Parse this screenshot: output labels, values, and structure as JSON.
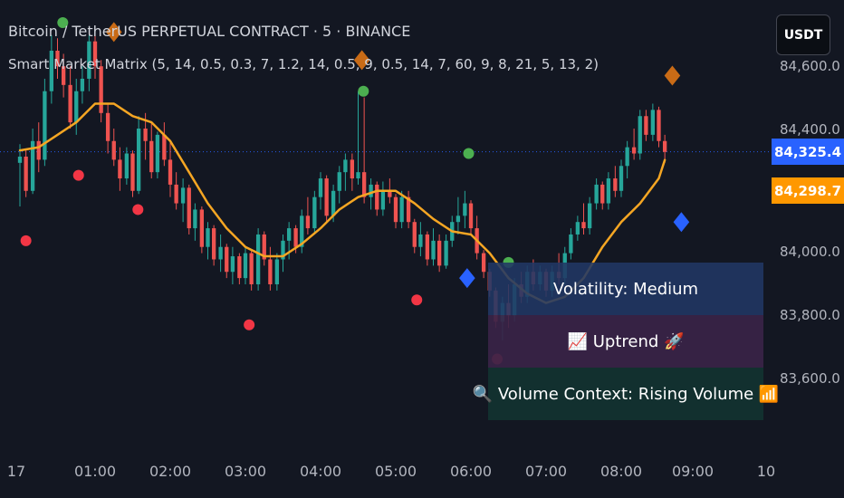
{
  "header": {
    "title": "Bitcoin / TetherUS PERPETUAL CONTRACT · 5 · BINANCE",
    "indicator": "Smart Market Matrix (5, 14, 0.5, 0.3, 7, 1.2, 14, 0.5, 9, 0.5, 14, 7, 60, 9, 8, 21, 5, 13, 2)"
  },
  "toolbar": {
    "currency": "USDT"
  },
  "price_axis": {
    "ticks": [
      {
        "value": 84600,
        "label": "84,600.0"
      },
      {
        "value": 84400,
        "label": "84,400.0"
      },
      {
        "value": 84000,
        "label": "84,000.0"
      },
      {
        "value": 83800,
        "label": "83,800.0"
      },
      {
        "value": 83600,
        "label": "83,600.0"
      }
    ],
    "last_price": {
      "value": 84325.4,
      "label": "84,325.4",
      "color": "#2962ff"
    },
    "ma_price": {
      "value": 84298.7,
      "label": "84,298.7",
      "color": "#ff9800"
    }
  },
  "time_axis": {
    "ticks": [
      {
        "t": 0.0,
        "label": "17"
      },
      {
        "t": 1.0,
        "label": "01:00"
      },
      {
        "t": 2.0,
        "label": "02:00"
      },
      {
        "t": 3.0,
        "label": "03:00"
      },
      {
        "t": 4.0,
        "label": "04:00"
      },
      {
        "t": 5.0,
        "label": "05:00"
      },
      {
        "t": 6.0,
        "label": "06:00"
      },
      {
        "t": 7.0,
        "label": "07:00"
      },
      {
        "t": 8.0,
        "label": "08:00"
      },
      {
        "t": 9.0,
        "label": "09:00"
      },
      {
        "t": 10.0,
        "label": "10"
      }
    ]
  },
  "info_table": {
    "volatility": "Volatility: Medium",
    "trend": "📈 Uptrend 🚀",
    "volume": "🔍 Volume Context: Rising Volume 📶"
  },
  "chart_data": {
    "type": "candlestick",
    "symbol": "Bitcoin / TetherUS PERPETUAL CONTRACT",
    "interval": "5",
    "exchange": "BINANCE",
    "x_unit": "hours",
    "y_range": [
      83450,
      84750
    ],
    "x_range": [
      -0.15,
      10.5
    ],
    "colors": {
      "up": "#26a69a",
      "down": "#ef5350",
      "ma": "#f5a623",
      "background": "#131722"
    },
    "candle_width_hours": 0.052,
    "candles": [
      {
        "t": 0.0,
        "o": 84290,
        "h": 84350,
        "l": 84150,
        "c": 84310
      },
      {
        "t": 0.08,
        "o": 84310,
        "h": 84330,
        "l": 84180,
        "c": 84200
      },
      {
        "t": 0.17,
        "o": 84200,
        "h": 84400,
        "l": 84190,
        "c": 84360
      },
      {
        "t": 0.25,
        "o": 84360,
        "h": 84420,
        "l": 84260,
        "c": 84300
      },
      {
        "t": 0.33,
        "o": 84300,
        "h": 84560,
        "l": 84280,
        "c": 84520
      },
      {
        "t": 0.42,
        "o": 84520,
        "h": 84700,
        "l": 84480,
        "c": 84650
      },
      {
        "t": 0.5,
        "o": 84650,
        "h": 84690,
        "l": 84560,
        "c": 84600
      },
      {
        "t": 0.58,
        "o": 84600,
        "h": 84640,
        "l": 84500,
        "c": 84540
      },
      {
        "t": 0.67,
        "o": 84540,
        "h": 84600,
        "l": 84400,
        "c": 84420
      },
      {
        "t": 0.75,
        "o": 84420,
        "h": 84560,
        "l": 84380,
        "c": 84520
      },
      {
        "t": 0.83,
        "o": 84520,
        "h": 84600,
        "l": 84480,
        "c": 84560
      },
      {
        "t": 0.92,
        "o": 84560,
        "h": 84700,
        "l": 84520,
        "c": 84680
      },
      {
        "t": 1.0,
        "o": 84680,
        "h": 84720,
        "l": 84560,
        "c": 84600
      },
      {
        "t": 1.08,
        "o": 84600,
        "h": 84620,
        "l": 84420,
        "c": 84450
      },
      {
        "t": 1.17,
        "o": 84450,
        "h": 84480,
        "l": 84320,
        "c": 84360
      },
      {
        "t": 1.25,
        "o": 84360,
        "h": 84400,
        "l": 84280,
        "c": 84300
      },
      {
        "t": 1.33,
        "o": 84300,
        "h": 84340,
        "l": 84200,
        "c": 84240
      },
      {
        "t": 1.42,
        "o": 84240,
        "h": 84340,
        "l": 84220,
        "c": 84320
      },
      {
        "t": 1.5,
        "o": 84320,
        "h": 84330,
        "l": 84180,
        "c": 84200
      },
      {
        "t": 1.58,
        "o": 84200,
        "h": 84440,
        "l": 84190,
        "c": 84400
      },
      {
        "t": 1.67,
        "o": 84400,
        "h": 84450,
        "l": 84300,
        "c": 84360
      },
      {
        "t": 1.75,
        "o": 84360,
        "h": 84420,
        "l": 84240,
        "c": 84260
      },
      {
        "t": 1.83,
        "o": 84260,
        "h": 84390,
        "l": 84240,
        "c": 84380
      },
      {
        "t": 1.92,
        "o": 84380,
        "h": 84420,
        "l": 84280,
        "c": 84300
      },
      {
        "t": 2.0,
        "o": 84300,
        "h": 84360,
        "l": 84180,
        "c": 84220
      },
      {
        "t": 2.08,
        "o": 84220,
        "h": 84260,
        "l": 84140,
        "c": 84160
      },
      {
        "t": 2.17,
        "o": 84160,
        "h": 84240,
        "l": 84100,
        "c": 84210
      },
      {
        "t": 2.25,
        "o": 84210,
        "h": 84220,
        "l": 84060,
        "c": 84080
      },
      {
        "t": 2.33,
        "o": 84080,
        "h": 84160,
        "l": 84040,
        "c": 84140
      },
      {
        "t": 2.42,
        "o": 84140,
        "h": 84150,
        "l": 84000,
        "c": 84020
      },
      {
        "t": 2.5,
        "o": 84020,
        "h": 84100,
        "l": 83980,
        "c": 84080
      },
      {
        "t": 2.58,
        "o": 84080,
        "h": 84090,
        "l": 83960,
        "c": 83980
      },
      {
        "t": 2.67,
        "o": 83980,
        "h": 84060,
        "l": 83940,
        "c": 84020
      },
      {
        "t": 2.75,
        "o": 84020,
        "h": 84030,
        "l": 83920,
        "c": 83940
      },
      {
        "t": 2.83,
        "o": 83940,
        "h": 84020,
        "l": 83900,
        "c": 83990
      },
      {
        "t": 2.92,
        "o": 83990,
        "h": 84000,
        "l": 83900,
        "c": 83920
      },
      {
        "t": 3.0,
        "o": 83920,
        "h": 84020,
        "l": 83900,
        "c": 84000
      },
      {
        "t": 3.08,
        "o": 84000,
        "h": 84010,
        "l": 83880,
        "c": 83900
      },
      {
        "t": 3.17,
        "o": 83900,
        "h": 84080,
        "l": 83880,
        "c": 84060
      },
      {
        "t": 3.25,
        "o": 84060,
        "h": 84070,
        "l": 83960,
        "c": 83980
      },
      {
        "t": 3.33,
        "o": 83980,
        "h": 84020,
        "l": 83880,
        "c": 83900
      },
      {
        "t": 3.42,
        "o": 83900,
        "h": 84000,
        "l": 83880,
        "c": 83980
      },
      {
        "t": 3.5,
        "o": 83980,
        "h": 84060,
        "l": 83940,
        "c": 84040
      },
      {
        "t": 3.58,
        "o": 84040,
        "h": 84100,
        "l": 83980,
        "c": 84080
      },
      {
        "t": 3.67,
        "o": 84080,
        "h": 84090,
        "l": 84000,
        "c": 84020
      },
      {
        "t": 3.75,
        "o": 84020,
        "h": 84140,
        "l": 84000,
        "c": 84120
      },
      {
        "t": 3.83,
        "o": 84120,
        "h": 84180,
        "l": 84060,
        "c": 84080
      },
      {
        "t": 3.92,
        "o": 84080,
        "h": 84200,
        "l": 84060,
        "c": 84180
      },
      {
        "t": 4.0,
        "o": 84180,
        "h": 84260,
        "l": 84140,
        "c": 84240
      },
      {
        "t": 4.08,
        "o": 84240,
        "h": 84250,
        "l": 84100,
        "c": 84120
      },
      {
        "t": 4.17,
        "o": 84120,
        "h": 84220,
        "l": 84100,
        "c": 84200
      },
      {
        "t": 4.25,
        "o": 84200,
        "h": 84280,
        "l": 84160,
        "c": 84260
      },
      {
        "t": 4.33,
        "o": 84260,
        "h": 84320,
        "l": 84200,
        "c": 84300
      },
      {
        "t": 4.42,
        "o": 84300,
        "h": 84320,
        "l": 84200,
        "c": 84240
      },
      {
        "t": 4.5,
        "o": 84240,
        "h": 84520,
        "l": 84220,
        "c": 84260
      },
      {
        "t": 4.58,
        "o": 84260,
        "h": 84500,
        "l": 84160,
        "c": 84180
      },
      {
        "t": 4.67,
        "o": 84180,
        "h": 84240,
        "l": 84140,
        "c": 84220
      },
      {
        "t": 4.75,
        "o": 84220,
        "h": 84230,
        "l": 84120,
        "c": 84140
      },
      {
        "t": 4.83,
        "o": 84140,
        "h": 84230,
        "l": 84120,
        "c": 84200
      },
      {
        "t": 4.92,
        "o": 84200,
        "h": 84240,
        "l": 84160,
        "c": 84180
      },
      {
        "t": 5.0,
        "o": 84180,
        "h": 84190,
        "l": 84080,
        "c": 84100
      },
      {
        "t": 5.08,
        "o": 84100,
        "h": 84200,
        "l": 84080,
        "c": 84180
      },
      {
        "t": 5.17,
        "o": 84180,
        "h": 84200,
        "l": 84080,
        "c": 84100
      },
      {
        "t": 5.25,
        "o": 84100,
        "h": 84110,
        "l": 84000,
        "c": 84020
      },
      {
        "t": 5.33,
        "o": 84020,
        "h": 84100,
        "l": 83990,
        "c": 84060
      },
      {
        "t": 5.42,
        "o": 84060,
        "h": 84070,
        "l": 83960,
        "c": 83980
      },
      {
        "t": 5.5,
        "o": 83980,
        "h": 84080,
        "l": 83960,
        "c": 84040
      },
      {
        "t": 5.58,
        "o": 84040,
        "h": 84060,
        "l": 83940,
        "c": 83960
      },
      {
        "t": 5.67,
        "o": 83960,
        "h": 84060,
        "l": 83950,
        "c": 84040
      },
      {
        "t": 5.75,
        "o": 84040,
        "h": 84120,
        "l": 84020,
        "c": 84100
      },
      {
        "t": 5.83,
        "o": 84100,
        "h": 84180,
        "l": 84060,
        "c": 84120
      },
      {
        "t": 5.92,
        "o": 84120,
        "h": 84200,
        "l": 84080,
        "c": 84160
      },
      {
        "t": 6.0,
        "o": 84160,
        "h": 84170,
        "l": 84060,
        "c": 84080
      },
      {
        "t": 6.08,
        "o": 84080,
        "h": 84120,
        "l": 83980,
        "c": 84000
      },
      {
        "t": 6.17,
        "o": 84000,
        "h": 84010,
        "l": 83920,
        "c": 83940
      },
      {
        "t": 6.25,
        "o": 83940,
        "h": 83950,
        "l": 83860,
        "c": 83880
      },
      {
        "t": 6.33,
        "o": 83880,
        "h": 83890,
        "l": 83760,
        "c": 83780
      },
      {
        "t": 6.42,
        "o": 83780,
        "h": 83860,
        "l": 83720,
        "c": 83840
      },
      {
        "t": 6.5,
        "o": 83840,
        "h": 83900,
        "l": 83760,
        "c": 83800
      },
      {
        "t": 6.58,
        "o": 83800,
        "h": 83920,
        "l": 83780,
        "c": 83900
      },
      {
        "t": 6.67,
        "o": 83900,
        "h": 83940,
        "l": 83840,
        "c": 83860
      },
      {
        "t": 6.75,
        "o": 83860,
        "h": 83960,
        "l": 83840,
        "c": 83940
      },
      {
        "t": 6.83,
        "o": 83940,
        "h": 83980,
        "l": 83880,
        "c": 83900
      },
      {
        "t": 6.92,
        "o": 83900,
        "h": 83960,
        "l": 83880,
        "c": 83940
      },
      {
        "t": 7.0,
        "o": 83940,
        "h": 83950,
        "l": 83860,
        "c": 83880
      },
      {
        "t": 7.08,
        "o": 83880,
        "h": 83960,
        "l": 83860,
        "c": 83940
      },
      {
        "t": 7.17,
        "o": 83940,
        "h": 84000,
        "l": 83900,
        "c": 83920
      },
      {
        "t": 7.25,
        "o": 83920,
        "h": 84020,
        "l": 83900,
        "c": 84000
      },
      {
        "t": 7.33,
        "o": 84000,
        "h": 84080,
        "l": 83980,
        "c": 84060
      },
      {
        "t": 7.42,
        "o": 84060,
        "h": 84120,
        "l": 84040,
        "c": 84100
      },
      {
        "t": 7.5,
        "o": 84100,
        "h": 84160,
        "l": 84060,
        "c": 84080
      },
      {
        "t": 7.58,
        "o": 84080,
        "h": 84180,
        "l": 84060,
        "c": 84160
      },
      {
        "t": 7.67,
        "o": 84160,
        "h": 84240,
        "l": 84140,
        "c": 84220
      },
      {
        "t": 7.75,
        "o": 84220,
        "h": 84230,
        "l": 84140,
        "c": 84160
      },
      {
        "t": 7.83,
        "o": 84160,
        "h": 84260,
        "l": 84140,
        "c": 84240
      },
      {
        "t": 7.92,
        "o": 84240,
        "h": 84280,
        "l": 84180,
        "c": 84200
      },
      {
        "t": 8.0,
        "o": 84200,
        "h": 84300,
        "l": 84180,
        "c": 84280
      },
      {
        "t": 8.08,
        "o": 84280,
        "h": 84360,
        "l": 84240,
        "c": 84340
      },
      {
        "t": 8.17,
        "o": 84340,
        "h": 84400,
        "l": 84300,
        "c": 84320
      },
      {
        "t": 8.25,
        "o": 84320,
        "h": 84460,
        "l": 84300,
        "c": 84440
      },
      {
        "t": 8.33,
        "o": 84440,
        "h": 84460,
        "l": 84360,
        "c": 84380
      },
      {
        "t": 8.42,
        "o": 84380,
        "h": 84480,
        "l": 84360,
        "c": 84460
      },
      {
        "t": 8.5,
        "o": 84460,
        "h": 84470,
        "l": 84340,
        "c": 84360
      },
      {
        "t": 8.58,
        "o": 84360,
        "h": 84380,
        "l": 84290,
        "c": 84325
      }
    ],
    "moving_average": [
      {
        "t": 0.0,
        "v": 84330
      },
      {
        "t": 0.25,
        "v": 84340
      },
      {
        "t": 0.5,
        "v": 84380
      },
      {
        "t": 0.75,
        "v": 84420
      },
      {
        "t": 1.0,
        "v": 84480
      },
      {
        "t": 1.25,
        "v": 84480
      },
      {
        "t": 1.5,
        "v": 84440
      },
      {
        "t": 1.75,
        "v": 84420
      },
      {
        "t": 2.0,
        "v": 84360
      },
      {
        "t": 2.25,
        "v": 84260
      },
      {
        "t": 2.5,
        "v": 84160
      },
      {
        "t": 2.75,
        "v": 84080
      },
      {
        "t": 3.0,
        "v": 84020
      },
      {
        "t": 3.25,
        "v": 83990
      },
      {
        "t": 3.5,
        "v": 83990
      },
      {
        "t": 3.75,
        "v": 84030
      },
      {
        "t": 4.0,
        "v": 84080
      },
      {
        "t": 4.25,
        "v": 84140
      },
      {
        "t": 4.5,
        "v": 84180
      },
      {
        "t": 4.75,
        "v": 84200
      },
      {
        "t": 5.0,
        "v": 84200
      },
      {
        "t": 5.25,
        "v": 84160
      },
      {
        "t": 5.5,
        "v": 84110
      },
      {
        "t": 5.75,
        "v": 84070
      },
      {
        "t": 6.0,
        "v": 84060
      },
      {
        "t": 6.25,
        "v": 84000
      },
      {
        "t": 6.5,
        "v": 83920
      },
      {
        "t": 6.75,
        "v": 83870
      },
      {
        "t": 7.0,
        "v": 83840
      },
      {
        "t": 7.25,
        "v": 83860
      },
      {
        "t": 7.5,
        "v": 83920
      },
      {
        "t": 7.75,
        "v": 84020
      },
      {
        "t": 8.0,
        "v": 84100
      },
      {
        "t": 8.25,
        "v": 84160
      },
      {
        "t": 8.5,
        "v": 84240
      },
      {
        "t": 8.58,
        "v": 84299
      }
    ],
    "signals": [
      {
        "t": 0.57,
        "v": 84740,
        "shape": "circle",
        "color": "#4caf50"
      },
      {
        "t": 0.08,
        "v": 84040,
        "shape": "circle",
        "color": "#f23645"
      },
      {
        "t": 0.78,
        "v": 84250,
        "shape": "circle",
        "color": "#f23645"
      },
      {
        "t": 1.57,
        "v": 84140,
        "shape": "circle",
        "color": "#f23645"
      },
      {
        "t": 3.05,
        "v": 83770,
        "shape": "circle",
        "color": "#f23645"
      },
      {
        "t": 4.57,
        "v": 84520,
        "shape": "circle",
        "color": "#4caf50"
      },
      {
        "t": 5.28,
        "v": 83850,
        "shape": "circle",
        "color": "#f23645"
      },
      {
        "t": 5.97,
        "v": 84320,
        "shape": "circle",
        "color": "#4caf50"
      },
      {
        "t": 6.5,
        "v": 83970,
        "shape": "circle",
        "color": "#4caf50"
      },
      {
        "t": 6.35,
        "v": 83660,
        "shape": "circle",
        "color": "#f23645"
      },
      {
        "t": 1.25,
        "v": 84710,
        "shape": "diamond",
        "color": "#c96b16"
      },
      {
        "t": 4.55,
        "v": 84620,
        "shape": "diamond",
        "color": "#c96b16"
      },
      {
        "t": 8.68,
        "v": 84570,
        "shape": "diamond",
        "color": "#c96b16"
      },
      {
        "t": 5.95,
        "v": 83920,
        "shape": "diamond",
        "color": "#2962ff"
      },
      {
        "t": 8.8,
        "v": 84100,
        "shape": "diamond",
        "color": "#2962ff"
      }
    ]
  }
}
